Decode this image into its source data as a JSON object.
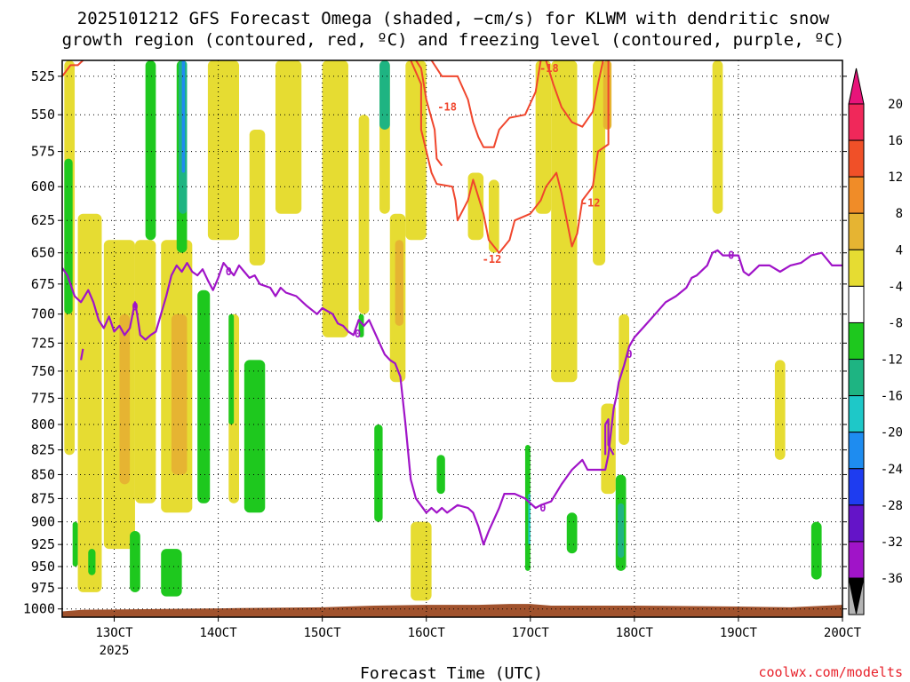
{
  "chart_data": {
    "type": "heatmap",
    "title_lines": [
      "2025101212 GFS Forecast Omega (shaded, −cm/s) for KLWM with dendritic snow",
      "growth region (contoured, red, ºC) and freezing level (contoured, purple, ºC)"
    ],
    "xlabel": "Forecast Time (UTC)",
    "x_ticks": [
      {
        "t": 0.0,
        "label": "13OCT",
        "sublabel": "2025"
      },
      {
        "t": 1.0,
        "label": "14OCT"
      },
      {
        "t": 2.0,
        "label": "15OCT"
      },
      {
        "t": 3.0,
        "label": "16OCT"
      },
      {
        "t": 4.0,
        "label": "17OCT"
      },
      {
        "t": 5.0,
        "label": "18OCT"
      },
      {
        "t": 6.0,
        "label": "19OCT"
      },
      {
        "t": 7.0,
        "label": "20OCT"
      }
    ],
    "xlim": [
      -0.5,
      7.0
    ],
    "y_ticks": [
      525,
      550,
      575,
      600,
      625,
      650,
      675,
      700,
      725,
      750,
      775,
      800,
      825,
      850,
      875,
      900,
      925,
      950,
      975,
      1000
    ],
    "ylim_hpa": [
      515,
      1010
    ],
    "yscale": "log-pressure",
    "colorbar": {
      "labels": [
        "20",
        "16",
        "12",
        "8",
        "4",
        "-4",
        "-8",
        "-12",
        "-16",
        "-20",
        "-24",
        "-28",
        "-32",
        "-36"
      ],
      "colors": [
        "#f0285a",
        "#f05028",
        "#f08c28",
        "#e6b432",
        "#e6dc32",
        "#ffffff",
        "#1ec81e",
        "#1eb482",
        "#1ec8c8",
        "#1e8cf0",
        "#1e3cf0",
        "#6414c8",
        "#a014c8",
        "#b4b4b4",
        "#000000"
      ],
      "top_arrow_color": "#e8147a"
    },
    "shaded_regions": [
      {
        "t0": -0.48,
        "t1": -0.38,
        "p0": 515,
        "p1": 830,
        "color": "#e6dc32"
      },
      {
        "t0": -0.35,
        "t1": -0.12,
        "p0": 620,
        "p1": 980,
        "color": "#e6dc32"
      },
      {
        "t0": -0.1,
        "t1": 0.2,
        "p0": 640,
        "p1": 930,
        "color": "#e6dc32"
      },
      {
        "t0": 0.05,
        "t1": 0.15,
        "p0": 700,
        "p1": 860,
        "color": "#e6b432"
      },
      {
        "t0": 0.2,
        "t1": 0.4,
        "p0": 640,
        "p1": 880,
        "color": "#e6dc32"
      },
      {
        "t0": 0.45,
        "t1": 0.75,
        "p0": 640,
        "p1": 890,
        "color": "#e6dc32"
      },
      {
        "t0": 0.55,
        "t1": 0.7,
        "p0": 700,
        "p1": 850,
        "color": "#e6b432"
      },
      {
        "t0": 0.9,
        "t1": 1.2,
        "p0": 515,
        "p1": 640,
        "color": "#e6dc32"
      },
      {
        "t0": 1.1,
        "t1": 1.2,
        "p0": 700,
        "p1": 880,
        "color": "#e6dc32"
      },
      {
        "t0": 1.3,
        "t1": 1.45,
        "p0": 560,
        "p1": 660,
        "color": "#e6dc32"
      },
      {
        "t0": 1.55,
        "t1": 1.8,
        "p0": 515,
        "p1": 620,
        "color": "#e6dc32"
      },
      {
        "t0": 2.0,
        "t1": 2.25,
        "p0": 515,
        "p1": 720,
        "color": "#e6dc32"
      },
      {
        "t0": 2.35,
        "t1": 2.45,
        "p0": 550,
        "p1": 700,
        "color": "#e6dc32"
      },
      {
        "t0": 2.55,
        "t1": 2.65,
        "p0": 515,
        "p1": 620,
        "color": "#e6dc32"
      },
      {
        "t0": 2.65,
        "t1": 2.8,
        "p0": 620,
        "p1": 760,
        "color": "#e6dc32"
      },
      {
        "t0": 2.7,
        "t1": 2.78,
        "p0": 640,
        "p1": 710,
        "color": "#e6b432"
      },
      {
        "t0": 2.8,
        "t1": 3.0,
        "p0": 515,
        "p1": 640,
        "color": "#e6dc32"
      },
      {
        "t0": 2.85,
        "t1": 3.05,
        "p0": 900,
        "p1": 990,
        "color": "#e6dc32"
      },
      {
        "t0": 3.4,
        "t1": 3.55,
        "p0": 590,
        "p1": 640,
        "color": "#e6dc32"
      },
      {
        "t0": 3.6,
        "t1": 3.7,
        "p0": 595,
        "p1": 650,
        "color": "#e6dc32"
      },
      {
        "t0": 4.05,
        "t1": 4.2,
        "p0": 515,
        "p1": 620,
        "color": "#e6dc32"
      },
      {
        "t0": 4.2,
        "t1": 4.45,
        "p0": 515,
        "p1": 760,
        "color": "#e6dc32"
      },
      {
        "t0": 4.6,
        "t1": 4.72,
        "p0": 515,
        "p1": 660,
        "color": "#e6dc32"
      },
      {
        "t0": 4.7,
        "t1": 4.78,
        "p0": 515,
        "p1": 560,
        "color": "#e6b432"
      },
      {
        "t0": 4.68,
        "t1": 4.82,
        "p0": 780,
        "p1": 870,
        "color": "#e6dc32"
      },
      {
        "t0": 4.85,
        "t1": 4.95,
        "p0": 700,
        "p1": 820,
        "color": "#e6dc32"
      },
      {
        "t0": 5.75,
        "t1": 5.85,
        "p0": 515,
        "p1": 620,
        "color": "#e6dc32"
      },
      {
        "t0": 6.35,
        "t1": 6.45,
        "p0": 740,
        "p1": 835,
        "color": "#e6dc32"
      },
      {
        "t0": -0.48,
        "t1": -0.4,
        "p0": 580,
        "p1": 700,
        "color": "#1ec81e"
      },
      {
        "t0": -0.4,
        "t1": -0.35,
        "p0": 900,
        "p1": 950,
        "color": "#1ec81e"
      },
      {
        "t0": -0.25,
        "t1": -0.18,
        "p0": 930,
        "p1": 960,
        "color": "#1ec81e"
      },
      {
        "t0": 0.15,
        "t1": 0.25,
        "p0": 910,
        "p1": 980,
        "color": "#1ec81e"
      },
      {
        "t0": 0.3,
        "t1": 0.4,
        "p0": 515,
        "p1": 640,
        "color": "#1ec81e"
      },
      {
        "t0": 0.45,
        "t1": 0.65,
        "p0": 930,
        "p1": 985,
        "color": "#1ec81e"
      },
      {
        "t0": 0.6,
        "t1": 0.7,
        "p0": 515,
        "p1": 650,
        "color": "#1ec81e"
      },
      {
        "t0": 0.62,
        "t1": 0.7,
        "p0": 515,
        "p1": 620,
        "color": "#1eb482"
      },
      {
        "t0": 0.65,
        "t1": 0.68,
        "p0": 515,
        "p1": 590,
        "color": "#1e8cf0"
      },
      {
        "t0": 0.8,
        "t1": 0.92,
        "p0": 680,
        "p1": 880,
        "color": "#1ec81e"
      },
      {
        "t0": 1.1,
        "t1": 1.15,
        "p0": 700,
        "p1": 800,
        "color": "#1ec81e"
      },
      {
        "t0": 1.25,
        "t1": 1.45,
        "p0": 740,
        "p1": 890,
        "color": "#1ec81e"
      },
      {
        "t0": 2.35,
        "t1": 2.4,
        "p0": 700,
        "p1": 720,
        "color": "#1ec81e"
      },
      {
        "t0": 2.55,
        "t1": 2.65,
        "p0": 515,
        "p1": 560,
        "color": "#1eb482"
      },
      {
        "t0": 2.5,
        "t1": 2.58,
        "p0": 800,
        "p1": 900,
        "color": "#1ec81e"
      },
      {
        "t0": 3.1,
        "t1": 3.18,
        "p0": 830,
        "p1": 870,
        "color": "#1ec81e"
      },
      {
        "t0": 3.95,
        "t1": 4.0,
        "p0": 820,
        "p1": 955,
        "color": "#1ec81e"
      },
      {
        "t0": 3.98,
        "t1": 4.0,
        "p0": 870,
        "p1": 925,
        "color": "#1ec8c8"
      },
      {
        "t0": 4.35,
        "t1": 4.45,
        "p0": 890,
        "p1": 935,
        "color": "#1ec81e"
      },
      {
        "t0": 4.82,
        "t1": 4.92,
        "p0": 850,
        "p1": 955,
        "color": "#1ec81e"
      },
      {
        "t0": 4.84,
        "t1": 4.9,
        "p0": 880,
        "p1": 940,
        "color": "#1eb482"
      },
      {
        "t0": 6.7,
        "t1": 6.8,
        "p0": 900,
        "p1": 965,
        "color": "#1ec81e"
      }
    ],
    "dgz_minus12_segments": [
      [
        [
          2.85,
          515
        ],
        [
          2.95,
          530
        ],
        [
          2.95,
          560
        ],
        [
          3.05,
          590
        ],
        [
          3.1,
          598
        ],
        [
          3.25,
          600
        ],
        [
          3.28,
          610
        ],
        [
          3.3,
          625
        ],
        [
          3.4,
          610
        ],
        [
          3.45,
          595
        ],
        [
          3.55,
          620
        ],
        [
          3.6,
          640
        ],
        [
          3.7,
          650
        ],
        [
          3.8,
          640
        ],
        [
          3.85,
          625
        ],
        [
          4.0,
          620
        ],
        [
          4.1,
          610
        ],
        [
          4.15,
          600
        ],
        [
          4.25,
          590
        ],
        [
          4.3,
          605
        ],
        [
          4.35,
          625
        ],
        [
          4.4,
          645
        ],
        [
          4.45,
          635
        ],
        [
          4.5,
          610
        ],
        [
          4.6,
          600
        ],
        [
          4.65,
          575
        ],
        [
          4.75,
          570
        ],
        [
          4.75,
          515
        ]
      ]
    ],
    "dgz_minus18_segments": [
      [
        [
          -0.5,
          525
        ],
        [
          -0.42,
          518
        ],
        [
          -0.35,
          518
        ],
        [
          -0.3,
          515
        ]
      ],
      [
        [
          2.9,
          515
        ],
        [
          2.95,
          520
        ],
        [
          3.0,
          540
        ],
        [
          3.08,
          560
        ],
        [
          3.1,
          580
        ],
        [
          3.15,
          585
        ]
      ],
      [
        [
          3.05,
          515
        ],
        [
          3.15,
          525
        ],
        [
          3.3,
          525
        ],
        [
          3.4,
          540
        ],
        [
          3.45,
          555
        ],
        [
          3.5,
          565
        ],
        [
          3.55,
          572
        ],
        [
          3.65,
          572
        ],
        [
          3.7,
          560
        ],
        [
          3.8,
          552
        ],
        [
          3.95,
          550
        ],
        [
          4.05,
          535
        ],
        [
          4.1,
          515
        ]
      ],
      [
        [
          4.15,
          515
        ],
        [
          4.22,
          530
        ],
        [
          4.3,
          545
        ],
        [
          4.4,
          555
        ],
        [
          4.5,
          558
        ],
        [
          4.6,
          548
        ],
        [
          4.65,
          530
        ],
        [
          4.7,
          515
        ]
      ]
    ],
    "contour_labels": [
      {
        "t": 3.2,
        "p": 545,
        "text": "-18",
        "color": "#f0462d"
      },
      {
        "t": 4.18,
        "p": 520,
        "text": "-18",
        "color": "#f0462d"
      },
      {
        "t": 3.63,
        "p": 655,
        "text": "-12",
        "color": "#f0462d"
      },
      {
        "t": 4.58,
        "p": 612,
        "text": "-12",
        "color": "#f0462d"
      },
      {
        "t": 0.2,
        "p": 694,
        "text": "0",
        "color": "#a014c8"
      },
      {
        "t": 1.1,
        "p": 665,
        "text": "0",
        "color": "#a014c8"
      },
      {
        "t": 2.34,
        "p": 717,
        "text": "0",
        "color": "#a014c8"
      },
      {
        "t": 4.12,
        "p": 885,
        "text": "0",
        "color": "#a014c8"
      },
      {
        "t": 4.95,
        "p": 735,
        "text": "0",
        "color": "#a014c8"
      },
      {
        "t": 5.93,
        "p": 652,
        "text": "0",
        "color": "#a014c8"
      }
    ],
    "freezing_level_segments": [
      [
        [
          -0.5,
          662
        ],
        [
          -0.45,
          668
        ],
        [
          -0.38,
          685
        ],
        [
          -0.32,
          690
        ],
        [
          -0.25,
          680
        ],
        [
          -0.2,
          690
        ],
        [
          -0.15,
          705
        ],
        [
          -0.1,
          712
        ],
        [
          -0.05,
          702
        ],
        [
          0.0,
          715
        ],
        [
          0.05,
          710
        ],
        [
          0.1,
          718
        ],
        [
          0.15,
          712
        ],
        [
          0.2,
          690
        ],
        [
          0.22,
          700
        ],
        [
          0.25,
          718
        ],
        [
          0.3,
          722
        ],
        [
          0.35,
          718
        ],
        [
          0.4,
          715
        ],
        [
          0.45,
          700
        ],
        [
          0.5,
          685
        ],
        [
          0.55,
          668
        ],
        [
          0.6,
          660
        ],
        [
          0.65,
          665
        ],
        [
          0.7,
          658
        ],
        [
          0.75,
          665
        ],
        [
          0.8,
          668
        ],
        [
          0.85,
          663
        ],
        [
          0.9,
          672
        ],
        [
          0.95,
          680
        ],
        [
          1.0,
          670
        ],
        [
          1.05,
          658
        ],
        [
          1.1,
          663
        ],
        [
          1.15,
          668
        ],
        [
          1.2,
          660
        ],
        [
          1.25,
          665
        ],
        [
          1.3,
          670
        ],
        [
          1.35,
          668
        ],
        [
          1.4,
          675
        ],
        [
          1.5,
          678
        ],
        [
          1.55,
          685
        ],
        [
          1.6,
          678
        ],
        [
          1.65,
          682
        ],
        [
          1.75,
          685
        ],
        [
          1.85,
          693
        ],
        [
          1.95,
          700
        ],
        [
          2.0,
          695
        ],
        [
          2.1,
          700
        ],
        [
          2.15,
          708
        ],
        [
          2.2,
          710
        ],
        [
          2.25,
          715
        ],
        [
          2.3,
          718
        ],
        [
          2.35,
          705
        ],
        [
          2.4,
          710
        ],
        [
          2.45,
          705
        ],
        [
          2.55,
          725
        ],
        [
          2.6,
          735
        ],
        [
          2.65,
          740
        ],
        [
          2.7,
          743
        ],
        [
          2.75,
          755
        ],
        [
          2.8,
          800
        ],
        [
          2.85,
          855
        ],
        [
          2.9,
          875
        ],
        [
          3.0,
          890
        ],
        [
          3.05,
          885
        ],
        [
          3.1,
          890
        ],
        [
          3.15,
          885
        ],
        [
          3.2,
          890
        ],
        [
          3.3,
          882
        ],
        [
          3.4,
          885
        ],
        [
          3.45,
          890
        ],
        [
          3.5,
          905
        ],
        [
          3.55,
          925
        ],
        [
          3.6,
          910
        ],
        [
          3.7,
          885
        ],
        [
          3.75,
          870
        ],
        [
          3.85,
          870
        ],
        [
          3.95,
          875
        ],
        [
          4.0,
          880
        ],
        [
          4.05,
          885
        ],
        [
          4.1,
          882
        ],
        [
          4.2,
          878
        ],
        [
          4.3,
          860
        ],
        [
          4.4,
          845
        ],
        [
          4.5,
          835
        ],
        [
          4.55,
          845
        ],
        [
          4.65,
          845
        ],
        [
          4.72,
          845
        ],
        [
          4.75,
          830
        ],
        [
          4.8,
          785
        ],
        [
          4.83,
          772
        ],
        [
          4.85,
          760
        ],
        [
          4.9,
          745
        ],
        [
          4.95,
          728
        ],
        [
          5.0,
          720
        ],
        [
          5.1,
          710
        ],
        [
          5.2,
          700
        ],
        [
          5.3,
          690
        ],
        [
          5.4,
          685
        ],
        [
          5.5,
          678
        ],
        [
          5.55,
          670
        ],
        [
          5.6,
          668
        ],
        [
          5.7,
          660
        ],
        [
          5.75,
          650
        ],
        [
          5.8,
          648
        ],
        [
          5.85,
          652
        ],
        [
          6.0,
          652
        ],
        [
          6.05,
          665
        ],
        [
          6.1,
          668
        ],
        [
          6.2,
          660
        ],
        [
          6.3,
          660
        ],
        [
          6.4,
          665
        ],
        [
          6.5,
          660
        ],
        [
          6.6,
          658
        ],
        [
          6.7,
          652
        ],
        [
          6.8,
          650
        ],
        [
          6.9,
          660
        ],
        [
          7.0,
          660
        ]
      ],
      [
        [
          -0.3,
          730
        ],
        [
          -0.32,
          740
        ]
      ],
      [
        [
          4.72,
          830
        ],
        [
          4.72,
          800
        ],
        [
          4.75,
          795
        ],
        [
          4.75,
          820
        ],
        [
          4.8,
          830
        ]
      ]
    ],
    "terrain_color": "#a0522d",
    "credit": "coolwx.com/modelts"
  }
}
